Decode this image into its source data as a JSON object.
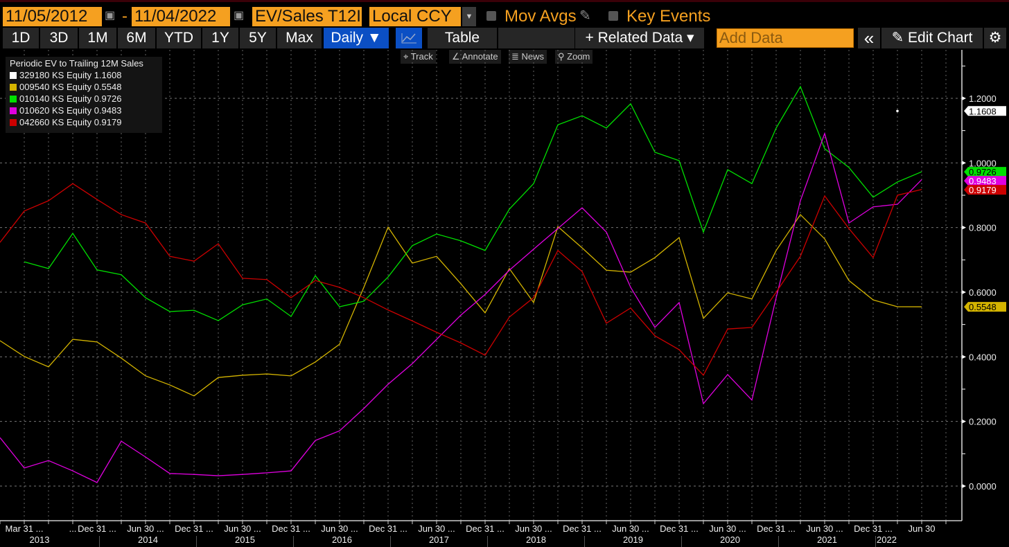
{
  "toolbar": {
    "start_date": "11/05/2012",
    "date_separator": "-",
    "end_date": "11/04/2022",
    "field": "EV/Sales T12I",
    "currency": "Local CCY",
    "mov_avgs": "Mov Avgs",
    "key_events": "Key Events",
    "periods": [
      "1D",
      "3D",
      "1M",
      "6M",
      "YTD",
      "1Y",
      "5Y",
      "Max"
    ],
    "frequency": "Daily ▼",
    "table": "Table",
    "related_data": "+ Related Data ▾",
    "add_data_placeholder": "Add Data",
    "collapse": "«",
    "edit_chart": "Edit Chart",
    "tools": [
      "Track",
      "Annotate",
      "News",
      "Zoom"
    ]
  },
  "colors": {
    "accent": "#f5a020",
    "active": "#0b4fc4"
  },
  "chart_data": {
    "type": "line",
    "title": "Periodic EV to Trailing 12M Sales",
    "x": [
      "2012-12-31",
      "2013-03-31",
      "2013-06-30",
      "2013-09-30",
      "2013-12-31",
      "2014-03-31",
      "2014-06-30",
      "2014-09-30",
      "2014-12-31",
      "2015-03-31",
      "2015-06-30",
      "2015-09-30",
      "2015-12-31",
      "2016-03-31",
      "2016-06-30",
      "2016-09-30",
      "2016-12-31",
      "2017-03-31",
      "2017-06-30",
      "2017-09-30",
      "2017-12-31",
      "2018-03-31",
      "2018-06-30",
      "2018-09-30",
      "2018-12-31",
      "2019-03-31",
      "2019-06-30",
      "2019-09-30",
      "2019-12-31",
      "2020-03-31",
      "2020-06-30",
      "2020-09-30",
      "2020-12-31",
      "2021-03-31",
      "2021-06-30",
      "2021-09-30",
      "2021-12-31",
      "2022-03-31",
      "2022-06-30"
    ],
    "x_tick_labels": [
      {
        "i": 1,
        "text": "Mar 31 ..."
      },
      {
        "i": 3,
        "text": "..."
      },
      {
        "i": 4,
        "text": "Dec 31 ..."
      },
      {
        "i": 6,
        "text": "Jun 30 ..."
      },
      {
        "i": 8,
        "text": "Dec 31 ..."
      },
      {
        "i": 10,
        "text": "Jun 30 ..."
      },
      {
        "i": 12,
        "text": "Dec 31 ..."
      },
      {
        "i": 14,
        "text": "Jun 30 ..."
      },
      {
        "i": 16,
        "text": "Dec 31 ..."
      },
      {
        "i": 18,
        "text": "Jun 30 ..."
      },
      {
        "i": 20,
        "text": "Dec 31 ..."
      },
      {
        "i": 22,
        "text": "Jun 30 ..."
      },
      {
        "i": 24,
        "text": "Dec 31 ..."
      },
      {
        "i": 26,
        "text": "Jun 30 ..."
      },
      {
        "i": 28,
        "text": "Dec 31 ..."
      },
      {
        "i": 30,
        "text": "Jun 30 ..."
      },
      {
        "i": 32,
        "text": "Dec 31 ..."
      },
      {
        "i": 34,
        "text": "Jun 30 ..."
      },
      {
        "i": 36,
        "text": "Dec 31 ..."
      },
      {
        "i": 38,
        "text": "Jun 30"
      }
    ],
    "year_labels": [
      "2013",
      "2014",
      "2015",
      "2016",
      "2017",
      "2018",
      "2019",
      "2020",
      "2021",
      "2022"
    ],
    "y_ticks": [
      "0.0000",
      "0.2000",
      "0.4000",
      "0.6000",
      "0.8000",
      "1.0000",
      "1.2000"
    ],
    "ylim": [
      -0.1,
      1.35
    ],
    "grid": true,
    "legend_position": "top-left",
    "series": [
      {
        "name": "329180 KS Equity",
        "last": "1.1608",
        "color": "#ffffff",
        "label_text": "#000000",
        "values": [
          null,
          null,
          null,
          null,
          null,
          null,
          null,
          null,
          null,
          null,
          null,
          null,
          null,
          null,
          null,
          null,
          null,
          null,
          null,
          null,
          null,
          null,
          null,
          null,
          null,
          null,
          null,
          null,
          null,
          null,
          null,
          null,
          null,
          null,
          null,
          null,
          null,
          1.1608,
          null
        ]
      },
      {
        "name": "009540 KS Equity",
        "last": "0.5548",
        "color": "#d4b400",
        "label_text": "#000000",
        "values": [
          0.45,
          0.401,
          0.369,
          0.454,
          0.446,
          0.396,
          0.341,
          0.313,
          0.279,
          0.336,
          0.343,
          0.347,
          0.341,
          0.384,
          0.439,
          0.615,
          0.801,
          0.69,
          0.711,
          0.626,
          0.536,
          0.673,
          0.568,
          0.803,
          0.737,
          0.668,
          0.662,
          0.707,
          0.769,
          0.519,
          0.598,
          0.579,
          0.729,
          0.84,
          0.765,
          0.636,
          0.576,
          0.555,
          0.5548
        ]
      },
      {
        "name": "010140 KS Equity",
        "last": "0.9726",
        "color": "#00e000",
        "label_text": "#000000",
        "values": [
          null,
          0.694,
          0.673,
          0.782,
          0.669,
          0.654,
          0.583,
          0.54,
          0.544,
          0.512,
          0.561,
          0.579,
          0.525,
          0.651,
          0.555,
          0.572,
          0.647,
          0.744,
          0.78,
          0.759,
          0.729,
          0.857,
          0.936,
          1.118,
          1.146,
          1.108,
          1.183,
          1.033,
          1.007,
          0.786,
          0.979,
          0.936,
          1.108,
          1.236,
          1.044,
          0.986,
          0.894,
          0.941,
          0.9726
        ]
      },
      {
        "name": "010620 KS Equity",
        "last": "0.9483",
        "color": "#e000e0",
        "label_text": "#ffffff",
        "values": [
          0.15,
          0.056,
          0.079,
          0.047,
          0.011,
          0.139,
          0.09,
          0.039,
          0.036,
          0.032,
          0.036,
          0.041,
          0.047,
          0.141,
          0.171,
          0.24,
          0.315,
          0.379,
          0.454,
          0.529,
          0.593,
          0.668,
          0.733,
          0.797,
          0.861,
          0.786,
          0.615,
          0.491,
          0.568,
          0.255,
          0.345,
          0.266,
          0.583,
          0.883,
          1.091,
          0.814,
          0.864,
          0.872,
          0.9483
        ]
      },
      {
        "name": "042660 KS Equity",
        "last": "0.9179",
        "color": "#cc0000",
        "label_text": "#ffffff",
        "values": [
          0.754,
          0.851,
          0.883,
          0.936,
          0.887,
          0.84,
          0.814,
          0.711,
          0.696,
          0.75,
          0.643,
          0.639,
          0.583,
          0.636,
          0.615,
          0.583,
          0.545,
          0.511,
          0.476,
          0.443,
          0.405,
          0.523,
          0.583,
          0.729,
          0.664,
          0.504,
          0.551,
          0.465,
          0.422,
          0.343,
          0.486,
          0.491,
          0.6,
          0.711,
          0.898,
          0.797,
          0.707,
          0.9,
          0.9179
        ]
      }
    ]
  }
}
